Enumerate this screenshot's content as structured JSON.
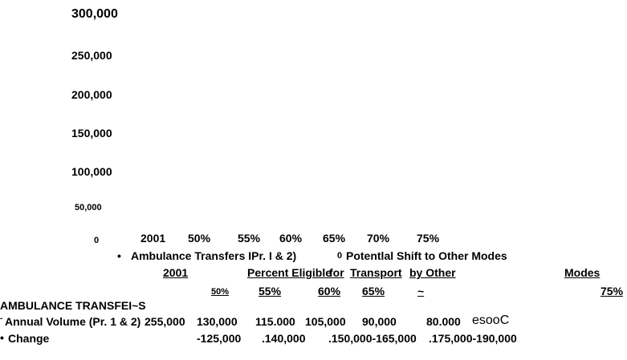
{
  "chart": {
    "yticks": [
      "300,000",
      "250,000",
      "200,000",
      "150,000",
      "100,000",
      "50,000",
      "0"
    ],
    "categories": [
      "2001",
      "50%",
      "55%",
      "60%",
      "65%",
      "70%",
      "75%"
    ],
    "legend": {
      "series_1": "Ambulance Transfers IPr. I & 2)",
      "marker_2": "0",
      "series_2": "Potentlal Shift to Other Modes"
    }
  },
  "table": {
    "header": [
      "2001",
      "Percent Eligible",
      "for",
      "Transport",
      "by Other",
      "Modes"
    ],
    "subheader": [
      "50%",
      "55%",
      "60%",
      "65%",
      "~",
      "75%"
    ],
    "section": "AMBULANCE TRANSFEI~S",
    "rows": [
      [
        "Annual Volume (Pr. 1 & 2)",
        "255,000",
        "130,000",
        "115.000",
        "105,000",
        "90,000",
        "80.000",
        "esooC"
      ],
      [
        "Change",
        "-125,000",
        ".140,000",
        ".150,000-165,000",
        ".175,000-190,000"
      ]
    ]
  }
}
